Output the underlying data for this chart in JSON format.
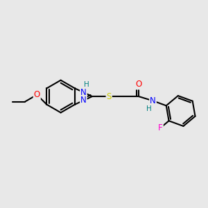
{
  "background_color": "#e8e8e8",
  "bond_color": "#000000",
  "bond_width": 1.5,
  "atom_colors": {
    "N": "#0000ff",
    "O": "#ff0000",
    "S": "#cccc00",
    "F": "#ff00cc",
    "H": "#008080",
    "C": "#000000"
  },
  "font_size": 8.5,
  "fig_width": 3.0,
  "fig_height": 3.0,
  "dpi": 100
}
